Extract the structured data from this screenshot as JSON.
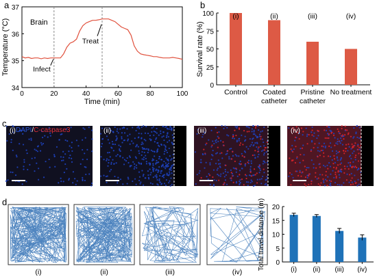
{
  "colors": {
    "line_red": "#e0503c",
    "bar_red": "#dd5a45",
    "bar_blue": "#1f72b8",
    "trace_blue": "#2f6fb4",
    "dapi_blue": "#1e43c0",
    "caspase_red": "#d8242a",
    "panel_dark": "#101020"
  },
  "panels": {
    "a": {
      "letter": "a"
    },
    "b": {
      "letter": "b"
    },
    "c": {
      "letter": "c"
    },
    "d": {
      "letter": "d"
    }
  },
  "chart_data": [
    {
      "type": "line",
      "panel": "a",
      "region_label": "Brain",
      "xlabel": "Time (min)",
      "ylabel": "Temperature (°C)",
      "xlim": [
        0,
        100
      ],
      "ylim": [
        34,
        37
      ],
      "xticks": [
        "0",
        "20",
        "40",
        "60",
        "80",
        "100"
      ],
      "yticks": [
        "34",
        "35",
        "36",
        "37"
      ],
      "x": [
        0,
        2,
        4,
        6,
        8,
        10,
        12,
        14,
        16,
        18,
        20,
        22,
        24,
        26,
        28,
        30,
        32,
        34,
        36,
        38,
        40,
        42,
        44,
        46,
        48,
        50,
        52,
        54,
        56,
        58,
        60,
        62,
        64,
        66,
        68,
        70,
        72,
        74,
        76,
        78,
        80,
        82,
        84,
        86,
        88,
        90,
        92,
        94,
        96,
        98,
        100
      ],
      "values": [
        35.15,
        35.1,
        35.12,
        35.08,
        35.1,
        35.1,
        35.07,
        35.1,
        35.08,
        35.1,
        35.1,
        35.1,
        35.1,
        35.25,
        35.5,
        35.65,
        35.7,
        35.8,
        36.1,
        36.3,
        36.4,
        36.45,
        36.5,
        36.5,
        36.52,
        36.55,
        36.55,
        36.55,
        36.5,
        36.45,
        36.35,
        36.25,
        36.2,
        36.15,
        35.95,
        35.55,
        35.35,
        35.25,
        35.22,
        35.2,
        35.18,
        35.15,
        35.15,
        35.12,
        35.1,
        35.1,
        35.1,
        35.12,
        35.1,
        35.08,
        35.05
      ],
      "vlines": [
        20,
        50
      ],
      "annotations": [
        {
          "text": "Infect",
          "x": 20,
          "y": 35.1
        },
        {
          "text": "Treat",
          "x": 50,
          "y": 36.5
        }
      ]
    },
    {
      "type": "bar",
      "panel": "b",
      "ylabel": "Survival rate (%)",
      "ylim": [
        0,
        100
      ],
      "yticks": [
        "0",
        "25",
        "50",
        "75",
        "100"
      ],
      "categories": [
        "Control",
        "Coated catheter",
        "Pristine catheter",
        "No treatment"
      ],
      "group_labels": [
        "(i)",
        "(ii)",
        "(iii)",
        "(iv)"
      ],
      "values": [
        100,
        90,
        60,
        50
      ]
    },
    {
      "type": "bar",
      "panel": "d",
      "ylabel": "Total travel distance (m)",
      "ylim": [
        0,
        20
      ],
      "yticks": [
        "0",
        "5",
        "10",
        "15",
        "20"
      ],
      "categories": [
        "(i)",
        "(ii)",
        "(iii)",
        "(iv)"
      ],
      "values": [
        17.0,
        16.6,
        11.2,
        8.8
      ],
      "errors": [
        0.6,
        0.5,
        0.9,
        1.0
      ]
    }
  ],
  "panel_c": {
    "legend_dapi": "DAPI",
    "legend_sep": "/",
    "legend_caspase": "C-caspase3",
    "images": [
      {
        "label": "(i)",
        "red_level": 0.0,
        "density": 0.35,
        "edge": false
      },
      {
        "label": "(ii)",
        "red_level": 0.0,
        "density": 0.95,
        "edge": true
      },
      {
        "label": "(iii)",
        "red_level": 0.45,
        "density": 0.8,
        "edge": true
      },
      {
        "label": "(iv)",
        "red_level": 0.9,
        "density": 0.85,
        "edge": true
      }
    ]
  },
  "panel_d_traces": {
    "labels": [
      "(i)",
      "(ii)",
      "(iii)",
      "(iv)"
    ],
    "segments": [
      260,
      220,
      90,
      40
    ]
  }
}
